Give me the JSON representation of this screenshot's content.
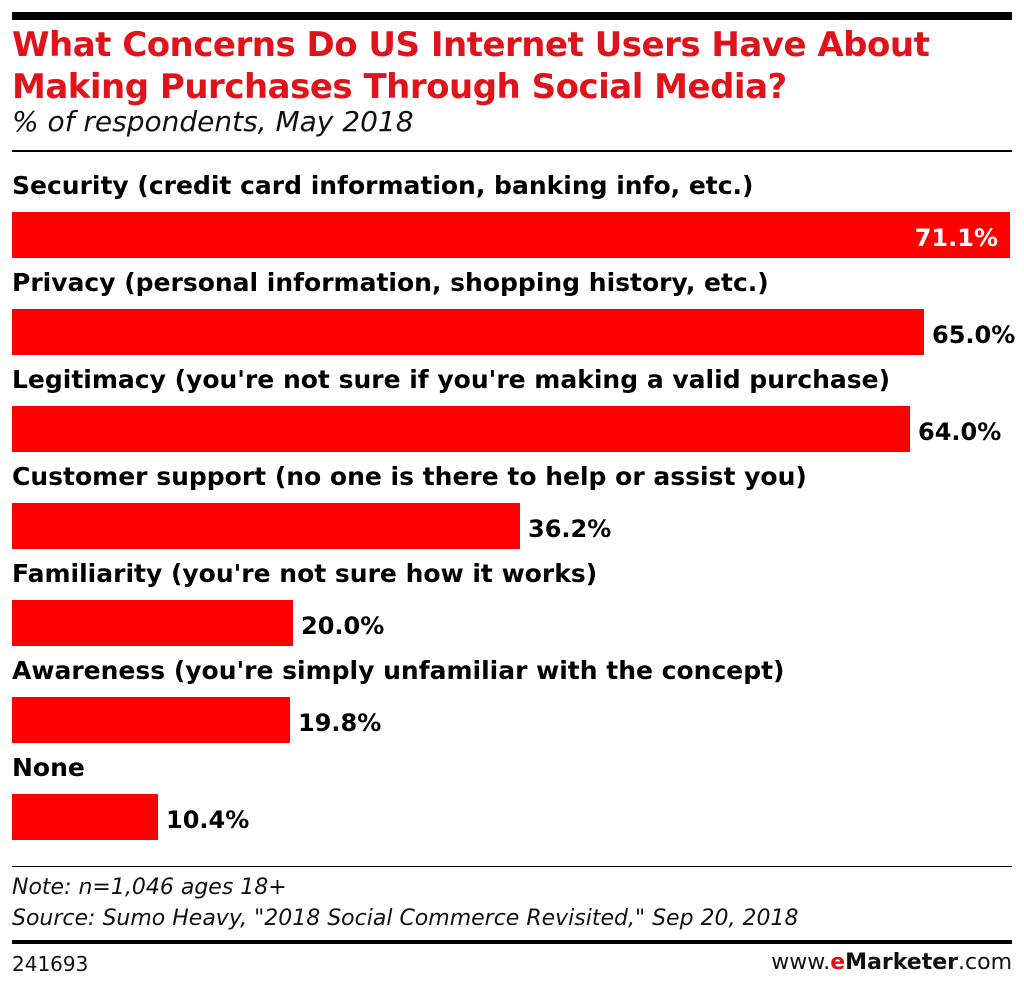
{
  "header": {
    "title_line1": "What Concerns Do US Internet Users Have About",
    "title_line2": "Making Purchases Through Social Media?",
    "subtitle": "% of respondents, May 2018"
  },
  "colors": {
    "accent": "#e0131a",
    "bar": "#fe0000",
    "text": "#000000"
  },
  "chart_data": {
    "type": "bar",
    "orientation": "horizontal",
    "title": "What Concerns Do US Internet Users Have About Making Purchases Through Social Media?",
    "subtitle": "% of respondents, May 2018",
    "categories": [
      "Security (credit card information, banking info, etc.)",
      "Privacy (personal information, shopping history, etc.)",
      "Legitimacy (you're not sure if you're making a valid purchase)",
      "Customer support (no one is there to help or assist you)",
      "Familiarity (you're not sure how it works)",
      "Awareness (you're simply unfamiliar with the concept)",
      "None"
    ],
    "values": [
      71.1,
      65.0,
      64.0,
      36.2,
      20.0,
      19.8,
      10.4
    ],
    "value_labels": [
      "71.1%",
      "65.0%",
      "64.0%",
      "36.2%",
      "20.0%",
      "19.8%",
      "10.4%"
    ],
    "xlim": [
      0,
      71.1
    ],
    "grid": false,
    "legend": "none"
  },
  "footer": {
    "note": "Note: n=1,046 ages 18+",
    "source": "Source: Sumo Heavy, \"2018 Social Commerce Revisited,\" Sep 20, 2018",
    "chart_id": "241693",
    "brand_prefix": "www.",
    "brand_e": "e",
    "brand_name": "Marketer",
    "brand_suffix": ".com"
  }
}
